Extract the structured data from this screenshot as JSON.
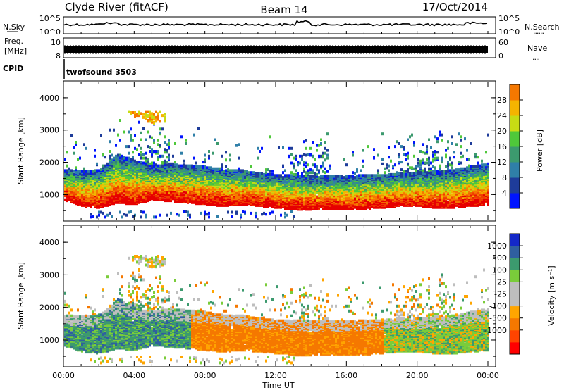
{
  "header": {
    "station": "Clyde River (fitACF)",
    "beam": "Beam 14",
    "date": "17/Oct/2014"
  },
  "noise_panel": {
    "left_label": "N.Sky",
    "right_label": "N.Search",
    "right_dots": "......",
    "left_ticks": [
      "10^5",
      "10^0"
    ],
    "right_ticks": [
      "10^5",
      "10^0"
    ]
  },
  "freq_panel": {
    "left_label_line1": "Freq.",
    "left_label_line2": "[MHz]",
    "left_ticks": [
      "10",
      "8"
    ],
    "right_label": "Nave",
    "right_dots": "....",
    "right_ticks": [
      "60",
      "0"
    ]
  },
  "cpid_panel": {
    "label": "CPID",
    "text": "twofsound 3503"
  },
  "colors": {
    "power_scale": [
      "#0014ff",
      "#1e3c9a",
      "#2f7fa8",
      "#3c9a6e",
      "#4fc83a",
      "#c8dc14",
      "#f5b400",
      "#f57800",
      "#f03c00",
      "#e60000"
    ],
    "velocity_scale": [
      "#ff0000",
      "#ff4400",
      "#f57800",
      "#ffa500",
      "#bebebe",
      "#bebebe",
      "#7acc3a",
      "#3c9a6e",
      "#2f5fa0",
      "#1428c8"
    ]
  },
  "chart_data": [
    {
      "type": "heatmap",
      "title": "",
      "xlabel": "Time UT",
      "ylabel": "Slant Range [km]",
      "x_ticks": [
        "00:00",
        "04:00",
        "08:00",
        "12:00",
        "16:00",
        "20:00",
        "00:00"
      ],
      "y_ticks": [
        "1000",
        "2000",
        "3000",
        "4000"
      ],
      "ylim": [
        200,
        4500
      ],
      "colorbar_label": "Power [dB]",
      "colorbar_ticks": [
        "4",
        "8",
        "12",
        "16",
        "20",
        "24",
        "28"
      ],
      "colorbar_range": [
        0,
        30
      ],
      "echo_band_lower_km": [
        900,
        700,
        650,
        800,
        750,
        900,
        850,
        800,
        750,
        700,
        750,
        700,
        650,
        600,
        600,
        620,
        600,
        620,
        650,
        700,
        700,
        650,
        650,
        700,
        750
      ],
      "echo_band_upper_km": [
        1700,
        1650,
        1700,
        2200,
        2000,
        1800,
        1900,
        1850,
        1800,
        1700,
        1700,
        1600,
        1550,
        1550,
        1500,
        1500,
        1500,
        1550,
        1550,
        1600,
        1600,
        1650,
        1700,
        1800,
        1900
      ]
    },
    {
      "type": "heatmap",
      "title": "",
      "xlabel": "Time UT",
      "ylabel": "Slant Range [km]",
      "x_ticks": [
        "00:00",
        "04:00",
        "08:00",
        "12:00",
        "16:00",
        "20:00",
        "00:00"
      ],
      "y_ticks": [
        "1000",
        "2000",
        "3000",
        "4000"
      ],
      "ylim": [
        200,
        4500
      ],
      "colorbar_label": "Velocity [m s⁻¹]",
      "colorbar_ticks": [
        "1000",
        "500",
        "100",
        "25",
        "-25",
        "-100",
        "-500",
        "-1000"
      ],
      "colorbar_range": [
        -1200,
        1200
      ]
    }
  ]
}
